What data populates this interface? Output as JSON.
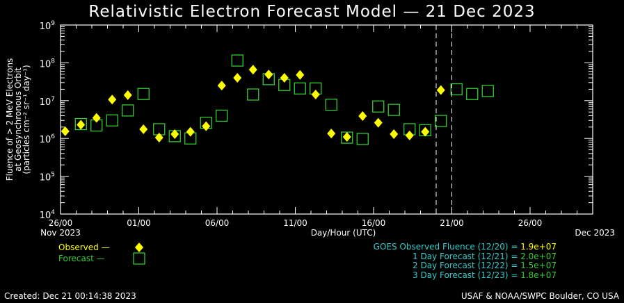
{
  "title": "Relativistic Electron Forecast Model — 21 Dec 2023",
  "colors": {
    "observed": "#ffff00",
    "forecast": "#33cc33",
    "info": "#33cccc",
    "axis": "#ffffff"
  },
  "legend": {
    "observed": "Observed —",
    "forecast": "Forecast —"
  },
  "info": {
    "rows": [
      {
        "label": "GOES Observed Fluence (12/20) = ",
        "value": "1.9e+07",
        "color": "#ffff00"
      },
      {
        "label": "1 Day Forecast (12/21) = ",
        "value": "2.0e+07",
        "color": "#33cc33"
      },
      {
        "label": "2 Day Forecast (12/22) = ",
        "value": "1.5e+07",
        "color": "#33cc33"
      },
      {
        "label": "3 Day Forecast (12/23) = ",
        "value": "1.8e+07",
        "color": "#33cc33"
      }
    ]
  },
  "footer": {
    "created": "Created: Dec 21 00:14:38 2023",
    "credit": "USAF & NOAA/SWPC Boulder, CO USA"
  },
  "chart_data": {
    "type": "scatter",
    "title": "Relativistic Electron Forecast Model — 21 Dec 2023",
    "xlabel": "Day/Hour (UTC)",
    "ylabel_lines": [
      "Fluence of > 2 MeV Electrons",
      "at Geosynchronous Orbit",
      "(particles cm⁻² sr⁻¹ day⁻¹)"
    ],
    "x_units": "days since 26 Nov 2023 00 UTC",
    "xlim": [
      0,
      34
    ],
    "x_ticks": [
      {
        "day": 0,
        "label": "26/00",
        "sub": "Nov 2023"
      },
      {
        "day": 5,
        "label": "01/00"
      },
      {
        "day": 10,
        "label": "06/00"
      },
      {
        "day": 15,
        "label": "11/00"
      },
      {
        "day": 20,
        "label": "16/00"
      },
      {
        "day": 25,
        "label": "21/00"
      },
      {
        "day": 30,
        "label": "26/00"
      },
      {
        "day": 34,
        "label": "",
        "sub_right": "Dec 2023"
      }
    ],
    "yscale": "log",
    "ylim": [
      10000.0,
      1000000000.0
    ],
    "y_ticks": [
      4,
      5,
      6,
      7,
      8,
      9
    ],
    "y_tick_base": "10",
    "vlines_day": [
      24,
      25
    ],
    "series": [
      {
        "name": "Observed",
        "marker": "diamond",
        "x": [
          0.3,
          1.3,
          2.3,
          3.3,
          4.3,
          5.3,
          6.3,
          7.3,
          8.3,
          9.3,
          10.3,
          11.3,
          12.3,
          13.3,
          14.3,
          15.3,
          16.3,
          17.3,
          18.3,
          19.3,
          20.3,
          21.3,
          22.3,
          23.3,
          24.3
        ],
        "y": [
          1550000.0,
          2300000.0,
          3500000.0,
          10700000.0,
          14000000.0,
          1750000.0,
          1050000.0,
          1300000.0,
          1500000.0,
          2100000.0,
          25000000.0,
          40000000.0,
          66000000.0,
          49000000.0,
          40000000.0,
          48000000.0,
          14500000.0,
          1350000.0,
          1100000.0,
          3900000.0,
          2600000.0,
          1300000.0,
          1200000.0,
          1500000.0,
          19000000.0
        ]
      },
      {
        "name": "Forecast",
        "marker": "square",
        "x": [
          1.3,
          2.3,
          3.3,
          4.3,
          5.3,
          6.3,
          7.3,
          8.3,
          9.3,
          10.3,
          11.3,
          12.3,
          13.3,
          14.3,
          15.3,
          16.3,
          17.3,
          18.3,
          19.3,
          20.3,
          21.3,
          22.3,
          23.3,
          24.3,
          25.3,
          26.3,
          27.3
        ],
        "y": [
          2400000.0,
          2200000.0,
          3000000.0,
          5500000.0,
          15000000.0,
          1750000.0,
          1150000.0,
          1000000.0,
          2600000.0,
          4000000.0,
          115000000.0,
          14500000.0,
          37000000.0,
          26000000.0,
          21000000.0,
          21000000.0,
          7800000.0,
          1050000.0,
          970000.0,
          7000000.0,
          5700000.0,
          1750000.0,
          1650000.0,
          2900000.0,
          20000000.0,
          15000000.0,
          18000000.0
        ]
      }
    ]
  }
}
